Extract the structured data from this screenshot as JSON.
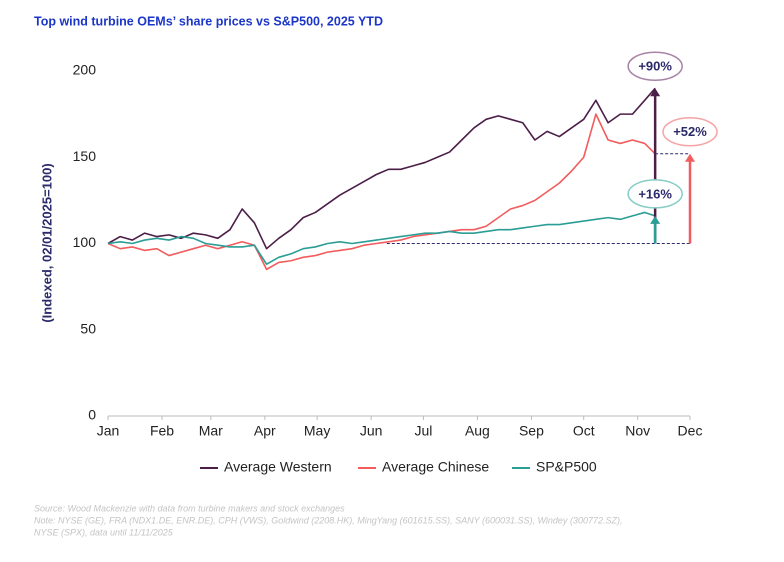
{
  "chart_data": {
    "type": "line",
    "title": "Top wind turbine OEMs’ share prices vs S&P500, 2025 YTD",
    "y_label": "(Indexed, 02/01/2025=100)",
    "x": [
      0,
      7,
      14,
      21,
      28,
      35,
      42,
      49,
      56,
      63,
      70,
      77,
      84,
      91,
      98,
      105,
      112,
      119,
      126,
      133,
      140,
      147,
      154,
      161,
      168,
      175,
      182,
      189,
      196,
      203,
      210,
      217,
      224,
      231,
      238,
      245,
      252,
      259,
      266,
      273,
      280,
      287,
      294,
      301,
      308,
      314
    ],
    "series": [
      {
        "name": "Average Western",
        "color": "#4b1e48",
        "values": [
          100,
          104,
          102,
          106,
          104,
          105,
          103,
          106,
          105,
          103,
          108,
          120,
          112,
          97,
          103,
          108,
          115,
          118,
          123,
          128,
          132,
          136,
          140,
          143,
          143,
          145,
          147,
          150,
          153,
          160,
          167,
          172,
          174,
          172,
          170,
          160,
          165,
          162,
          167,
          172,
          183,
          170,
          175,
          175,
          183,
          190
        ]
      },
      {
        "name": "Average Chinese",
        "color": "#f25c5c",
        "values": [
          100,
          97,
          98,
          96,
          97,
          93,
          95,
          97,
          99,
          97,
          99,
          101,
          99,
          85,
          89,
          90,
          92,
          93,
          95,
          96,
          97,
          99,
          100,
          101,
          102,
          104,
          105,
          106,
          107,
          108,
          108,
          110,
          115,
          120,
          122,
          125,
          130,
          135,
          142,
          150,
          175,
          160,
          158,
          160,
          158,
          152
        ]
      },
      {
        "name": "SP&P500",
        "color": "#2a9d95",
        "values": [
          100,
          101,
          100,
          102,
          103,
          102,
          104,
          103,
          100,
          99,
          98,
          98,
          99,
          88,
          92,
          94,
          97,
          98,
          100,
          101,
          100,
          101,
          102,
          103,
          104,
          105,
          106,
          106,
          107,
          106,
          106,
          107,
          108,
          108,
          109,
          110,
          111,
          111,
          112,
          113,
          114,
          115,
          114,
          116,
          118,
          116
        ]
      }
    ],
    "xlim": [
      0,
      334
    ],
    "xticks": [
      {
        "value": 0,
        "label": "Jan"
      },
      {
        "value": 31,
        "label": "Feb"
      },
      {
        "value": 59,
        "label": "Mar"
      },
      {
        "value": 90,
        "label": "Apr"
      },
      {
        "value": 120,
        "label": "May"
      },
      {
        "value": 151,
        "label": "Jun"
      },
      {
        "value": 181,
        "label": "Jul"
      },
      {
        "value": 212,
        "label": "Aug"
      },
      {
        "value": 243,
        "label": "Sep"
      },
      {
        "value": 273,
        "label": "Oct"
      },
      {
        "value": 304,
        "label": "Nov"
      },
      {
        "value": 334,
        "label": "Dec"
      }
    ],
    "ylim": [
      0,
      200
    ],
    "yticks": [
      0,
      50,
      100,
      150,
      200
    ],
    "grid": false,
    "legend": "bottom",
    "annotations": [
      {
        "label": "+90%",
        "x": 314,
        "from": 100,
        "to": 190,
        "color": "#4b1e48",
        "outline": "#a783a5"
      },
      {
        "label": "+52%",
        "x": 334,
        "from": 100,
        "to": 152,
        "color": "#f25c5c",
        "outline": "#f5a3a3"
      },
      {
        "label": "+16%",
        "x": 314,
        "from": 100,
        "to": 116,
        "color": "#2a9d95",
        "outline": "#86cdc6"
      }
    ],
    "source": "Source: Wood Mackenzie with data from turbine makers and stock exchanges",
    "note": [
      "Note: NYSE (GE), FRA (NDX1.DE, ENR.DE), CPH (VWS), Goldwind (2208.HK), MingYang (601615.SS), SANY (600031.SS), Windey (300772.SZ),",
      "NYSE (SPX), data until 11/11/2025"
    ]
  }
}
